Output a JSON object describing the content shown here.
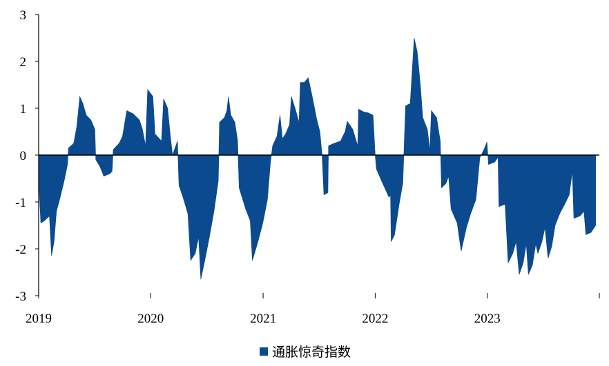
{
  "chart_data": {
    "type": "area",
    "title": "",
    "xlabel": "",
    "ylabel": "",
    "x_start": "2019-01",
    "x_end": "2023-12",
    "ylim": [
      -3,
      3
    ],
    "y_ticks": [
      3,
      2,
      1,
      0,
      -1,
      -2,
      -3
    ],
    "x_ticks": [
      "2019",
      "2020",
      "2021",
      "2022",
      "2023"
    ],
    "grid": false,
    "legend_position": "bottom",
    "series": [
      {
        "name": "通胀惊奇指数",
        "color": "#0b4a8f",
        "points": [
          [
            "2019-01-01",
            -0.5
          ],
          [
            "2019-01-08",
            -1.45
          ],
          [
            "2019-01-20",
            -1.4
          ],
          [
            "2019-02-05",
            -1.3
          ],
          [
            "2019-02-12",
            -2.15
          ],
          [
            "2019-02-20",
            -1.85
          ],
          [
            "2019-02-28",
            -1.2
          ],
          [
            "2019-03-12",
            -0.9
          ],
          [
            "2019-03-25",
            -0.55
          ],
          [
            "2019-04-05",
            -0.2
          ],
          [
            "2019-04-08",
            0.15
          ],
          [
            "2019-04-25",
            0.25
          ],
          [
            "2019-05-05",
            0.6
          ],
          [
            "2019-05-15",
            1.25
          ],
          [
            "2019-05-25",
            1.1
          ],
          [
            "2019-06-05",
            0.85
          ],
          [
            "2019-06-20",
            0.75
          ],
          [
            "2019-07-03",
            0.55
          ],
          [
            "2019-07-06",
            -0.1
          ],
          [
            "2019-07-20",
            -0.25
          ],
          [
            "2019-08-01",
            -0.45
          ],
          [
            "2019-08-20",
            -0.4
          ],
          [
            "2019-08-28",
            -0.35
          ],
          [
            "2019-09-01",
            0.12
          ],
          [
            "2019-09-20",
            0.25
          ],
          [
            "2019-10-01",
            0.4
          ],
          [
            "2019-10-15",
            0.95
          ],
          [
            "2019-11-05",
            0.88
          ],
          [
            "2019-11-25",
            0.75
          ],
          [
            "2019-12-05",
            0.55
          ],
          [
            "2019-12-15",
            0.2
          ],
          [
            "2019-12-22",
            1.4
          ],
          [
            "2020-01-08",
            1.25
          ],
          [
            "2020-01-15",
            0.45
          ],
          [
            "2020-01-25",
            0.38
          ],
          [
            "2020-02-05",
            0.3
          ],
          [
            "2020-02-12",
            1.2
          ],
          [
            "2020-02-25",
            1.0
          ],
          [
            "2020-03-05",
            0.4
          ],
          [
            "2020-03-12",
            0.0
          ],
          [
            "2020-03-28",
            0.3
          ],
          [
            "2020-04-02",
            -0.65
          ],
          [
            "2020-04-15",
            -0.9
          ],
          [
            "2020-05-01",
            -1.25
          ],
          [
            "2020-05-10",
            -2.25
          ],
          [
            "2020-05-25",
            -2.1
          ],
          [
            "2020-06-05",
            -1.75
          ],
          [
            "2020-06-12",
            -2.65
          ],
          [
            "2020-06-25",
            -2.25
          ],
          [
            "2020-07-10",
            -1.75
          ],
          [
            "2020-07-25",
            -1.2
          ],
          [
            "2020-08-08",
            -0.55
          ],
          [
            "2020-08-12",
            0.7
          ],
          [
            "2020-08-28",
            0.8
          ],
          [
            "2020-09-05",
            0.95
          ],
          [
            "2020-09-10",
            1.25
          ],
          [
            "2020-09-18",
            0.85
          ],
          [
            "2020-10-01",
            0.7
          ],
          [
            "2020-10-10",
            0.3
          ],
          [
            "2020-10-15",
            -0.7
          ],
          [
            "2020-11-05",
            -1.15
          ],
          [
            "2020-11-20",
            -1.4
          ],
          [
            "2020-11-27",
            -2.25
          ],
          [
            "2020-12-15",
            -1.85
          ],
          [
            "2020-12-31",
            -1.45
          ],
          [
            "2021-01-15",
            -0.95
          ],
          [
            "2021-01-25",
            -0.15
          ],
          [
            "2021-02-01",
            0.2
          ],
          [
            "2021-02-15",
            0.4
          ],
          [
            "2021-02-25",
            0.85
          ],
          [
            "2021-03-05",
            0.35
          ],
          [
            "2021-03-15",
            0.45
          ],
          [
            "2021-03-28",
            0.65
          ],
          [
            "2021-04-03",
            1.25
          ],
          [
            "2021-04-15",
            1.0
          ],
          [
            "2021-04-28",
            0.7
          ],
          [
            "2021-05-02",
            1.55
          ],
          [
            "2021-05-15",
            1.55
          ],
          [
            "2021-05-28",
            1.65
          ],
          [
            "2021-06-10",
            1.25
          ],
          [
            "2021-06-25",
            0.75
          ],
          [
            "2021-07-05",
            0.5
          ],
          [
            "2021-07-12",
            0.0
          ],
          [
            "2021-07-18",
            -0.85
          ],
          [
            "2021-07-31",
            -0.8
          ],
          [
            "2021-08-02",
            0.2
          ],
          [
            "2021-08-20",
            0.25
          ],
          [
            "2021-09-10",
            0.3
          ],
          [
            "2021-09-25",
            0.5
          ],
          [
            "2021-10-02",
            0.72
          ],
          [
            "2021-10-20",
            0.55
          ],
          [
            "2021-11-05",
            0.2
          ],
          [
            "2021-11-08",
            0.98
          ],
          [
            "2021-11-25",
            0.92
          ],
          [
            "2021-12-10",
            0.9
          ],
          [
            "2021-12-25",
            0.85
          ],
          [
            "2022-01-01",
            0.0
          ],
          [
            "2022-01-05",
            -0.3
          ],
          [
            "2022-01-25",
            -0.6
          ],
          [
            "2022-02-15",
            -0.9
          ],
          [
            "2022-02-20",
            -0.85
          ],
          [
            "2022-02-22",
            -1.85
          ],
          [
            "2022-03-05",
            -1.7
          ],
          [
            "2022-03-20",
            -1.05
          ],
          [
            "2022-04-01",
            -0.6
          ],
          [
            "2022-04-10",
            1.05
          ],
          [
            "2022-04-25",
            1.1
          ],
          [
            "2022-05-08",
            2.5
          ],
          [
            "2022-05-18",
            2.2
          ],
          [
            "2022-05-28",
            1.5
          ],
          [
            "2022-06-05",
            0.8
          ],
          [
            "2022-06-20",
            0.55
          ],
          [
            "2022-06-28",
            0.1
          ],
          [
            "2022-07-03",
            0.95
          ],
          [
            "2022-07-20",
            0.8
          ],
          [
            "2022-08-01",
            0.3
          ],
          [
            "2022-08-05",
            -0.7
          ],
          [
            "2022-08-20",
            -0.6
          ],
          [
            "2022-08-28",
            -0.45
          ],
          [
            "2022-09-05",
            -1.15
          ],
          [
            "2022-09-25",
            -1.45
          ],
          [
            "2022-10-08",
            -2.05
          ],
          [
            "2022-10-25",
            -1.55
          ],
          [
            "2022-11-08",
            -1.25
          ],
          [
            "2022-11-25",
            -0.95
          ],
          [
            "2022-12-08",
            -0.05
          ],
          [
            "2022-12-20",
            0.1
          ],
          [
            "2022-12-31",
            0.28
          ],
          [
            "2023-01-05",
            -0.2
          ],
          [
            "2023-01-25",
            -0.15
          ],
          [
            "2023-02-05",
            -0.05
          ],
          [
            "2023-02-08",
            -1.1
          ],
          [
            "2023-02-28",
            -1.05
          ],
          [
            "2023-03-10",
            -2.3
          ],
          [
            "2023-03-25",
            -2.1
          ],
          [
            "2023-04-05",
            -1.85
          ],
          [
            "2023-04-15",
            -2.55
          ],
          [
            "2023-04-28",
            -2.3
          ],
          [
            "2023-05-08",
            -1.9
          ],
          [
            "2023-05-15",
            -2.55
          ],
          [
            "2023-05-28",
            -2.35
          ],
          [
            "2023-06-08",
            -1.9
          ],
          [
            "2023-06-15",
            -2.1
          ],
          [
            "2023-06-28",
            -1.85
          ],
          [
            "2023-07-08",
            -1.55
          ],
          [
            "2023-07-18",
            -2.2
          ],
          [
            "2023-07-30",
            -1.95
          ],
          [
            "2023-08-10",
            -1.5
          ],
          [
            "2023-08-25",
            -1.25
          ],
          [
            "2023-09-10",
            -1.05
          ],
          [
            "2023-09-25",
            -0.85
          ],
          [
            "2023-10-05",
            -0.35
          ],
          [
            "2023-10-10",
            -1.35
          ],
          [
            "2023-10-30",
            -1.3
          ],
          [
            "2023-11-12",
            -1.2
          ],
          [
            "2023-11-18",
            -1.7
          ],
          [
            "2023-12-05",
            -1.65
          ],
          [
            "2023-12-20",
            -1.5
          ]
        ]
      }
    ]
  }
}
